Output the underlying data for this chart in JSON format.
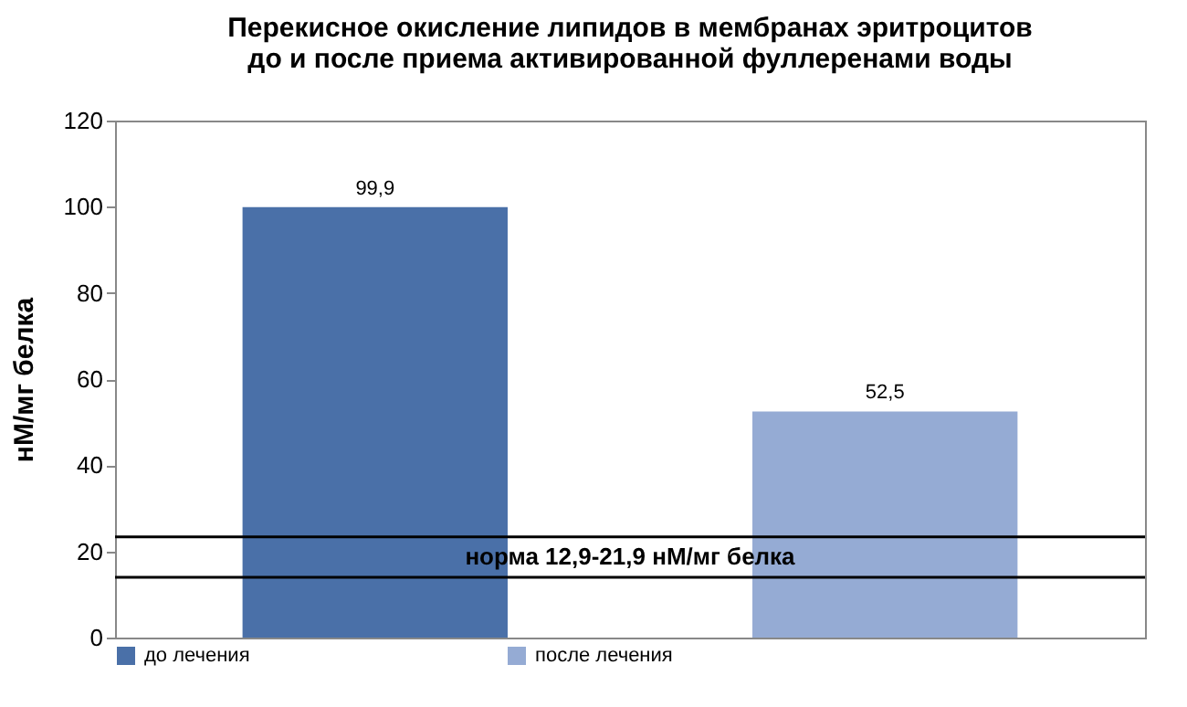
{
  "chart_data": {
    "type": "bar",
    "title": "Перекисное окисление липидов в мембранах эритроцитов до и после приема активированной фуллеренами воды",
    "ylabel": "нМ/мг белка",
    "categories": [
      null
    ],
    "series": [
      {
        "name": "до лечения",
        "color": "#4a70a8",
        "values": [
          99.9
        ],
        "value_labels": [
          "99,9"
        ]
      },
      {
        "name": "после лечения",
        "color": "#95abd4",
        "values": [
          52.5
        ],
        "value_labels": [
          "52,5"
        ]
      }
    ],
    "ylim": [
      0,
      120
    ],
    "yticks": [
      0,
      20,
      40,
      60,
      80,
      100,
      120
    ],
    "grid": false,
    "legend": "bottom",
    "ref_lines": [
      {
        "axis": "y",
        "value": 23.4,
        "color": "#000000"
      },
      {
        "axis": "y",
        "value": 14,
        "color": "#000000"
      }
    ],
    "annotations": [
      "норма 12,9-21,9 нМ/мг белка"
    ]
  }
}
